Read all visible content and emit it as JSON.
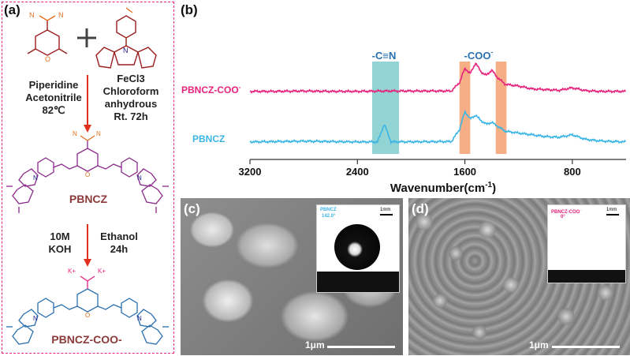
{
  "panel_a": {
    "letter": "(a)",
    "step1_left": [
      "Piperidine",
      "Acetonitrile",
      "82℃"
    ],
    "step1_right": [
      "FeCl3",
      "Chloroform",
      "anhydrous",
      "Rt. 72h"
    ],
    "product1": "PBNCZ",
    "step2_left": [
      "10M",
      "KOH"
    ],
    "step2_right": [
      "Ethanol",
      "24h"
    ],
    "product2": "PBNCZ-COO-",
    "counter_ion": "K+",
    "nitrile_label": "N",
    "oxygen_label": "O",
    "carbazole_n": "N"
  },
  "panel_b": {
    "letter": "(b)",
    "band_cn_label": "-C≡N",
    "band_coo_label": "-COO-",
    "series_label_top": "PBNCZ-COO-",
    "series_label_bottom": "PBNCZ",
    "xlabel": "Wavenumber(cm-1)",
    "xticks": [
      "3200",
      "2400",
      "1600",
      "800"
    ]
  },
  "panel_c": {
    "letter": "(c)",
    "inset_label_1": "PBNCZ",
    "inset_label_2": "142.0°",
    "inset_scale": "1mm",
    "scale_bar": "1μm"
  },
  "panel_d": {
    "letter": "(d)",
    "inset_label_1": "PBNCZ-COO-",
    "inset_label_2": "0°",
    "inset_scale": "1mm",
    "scale_bar": "1μm"
  },
  "chart_data": {
    "type": "line",
    "title": "",
    "xlabel": "Wavenumber(cm-1)",
    "ylabel": "",
    "xlim": [
      3200,
      400
    ],
    "x_reversed": true,
    "xticks": [
      3200,
      2400,
      1600,
      800
    ],
    "highlight_bands": [
      {
        "label": "-C≡N",
        "range": [
          2290,
          2090
        ],
        "color": "#7fcccc"
      },
      {
        "label": "-COO-",
        "range": [
          1640,
          1560
        ],
        "color": "#f4a070"
      },
      {
        "label": "-COO-",
        "range": [
          1370,
          1290
        ],
        "color": "#f4a070"
      }
    ],
    "series": [
      {
        "name": "PBNCZ-COO-",
        "color": "#e6237d",
        "x": [
          3200,
          3000,
          2800,
          2600,
          2400,
          2200,
          1700,
          1640,
          1600,
          1560,
          1520,
          1480,
          1440,
          1400,
          1360,
          1300,
          1200,
          1100,
          1000,
          900,
          800,
          700,
          600,
          500,
          400
        ],
        "y": [
          0.05,
          0.05,
          0.06,
          0.05,
          0.05,
          0.06,
          0.06,
          0.3,
          0.7,
          0.55,
          0.85,
          0.6,
          0.5,
          0.65,
          0.45,
          0.25,
          0.2,
          0.12,
          0.1,
          0.08,
          0.15,
          0.07,
          0.05,
          0.05,
          0.05
        ]
      },
      {
        "name": "PBNCZ",
        "color": "#3bb5e6",
        "x": [
          3200,
          3000,
          2800,
          2600,
          2400,
          2250,
          2200,
          2150,
          1700,
          1640,
          1600,
          1560,
          1520,
          1480,
          1440,
          1400,
          1360,
          1300,
          1200,
          1100,
          1000,
          900,
          800,
          700,
          600,
          500,
          400
        ],
        "y": [
          0.05,
          0.06,
          0.07,
          0.06,
          0.05,
          0.05,
          0.55,
          0.05,
          0.06,
          0.4,
          0.9,
          0.7,
          0.8,
          0.65,
          0.55,
          0.6,
          0.5,
          0.35,
          0.3,
          0.25,
          0.2,
          0.18,
          0.25,
          0.12,
          0.08,
          0.06,
          0.05
        ]
      }
    ]
  }
}
